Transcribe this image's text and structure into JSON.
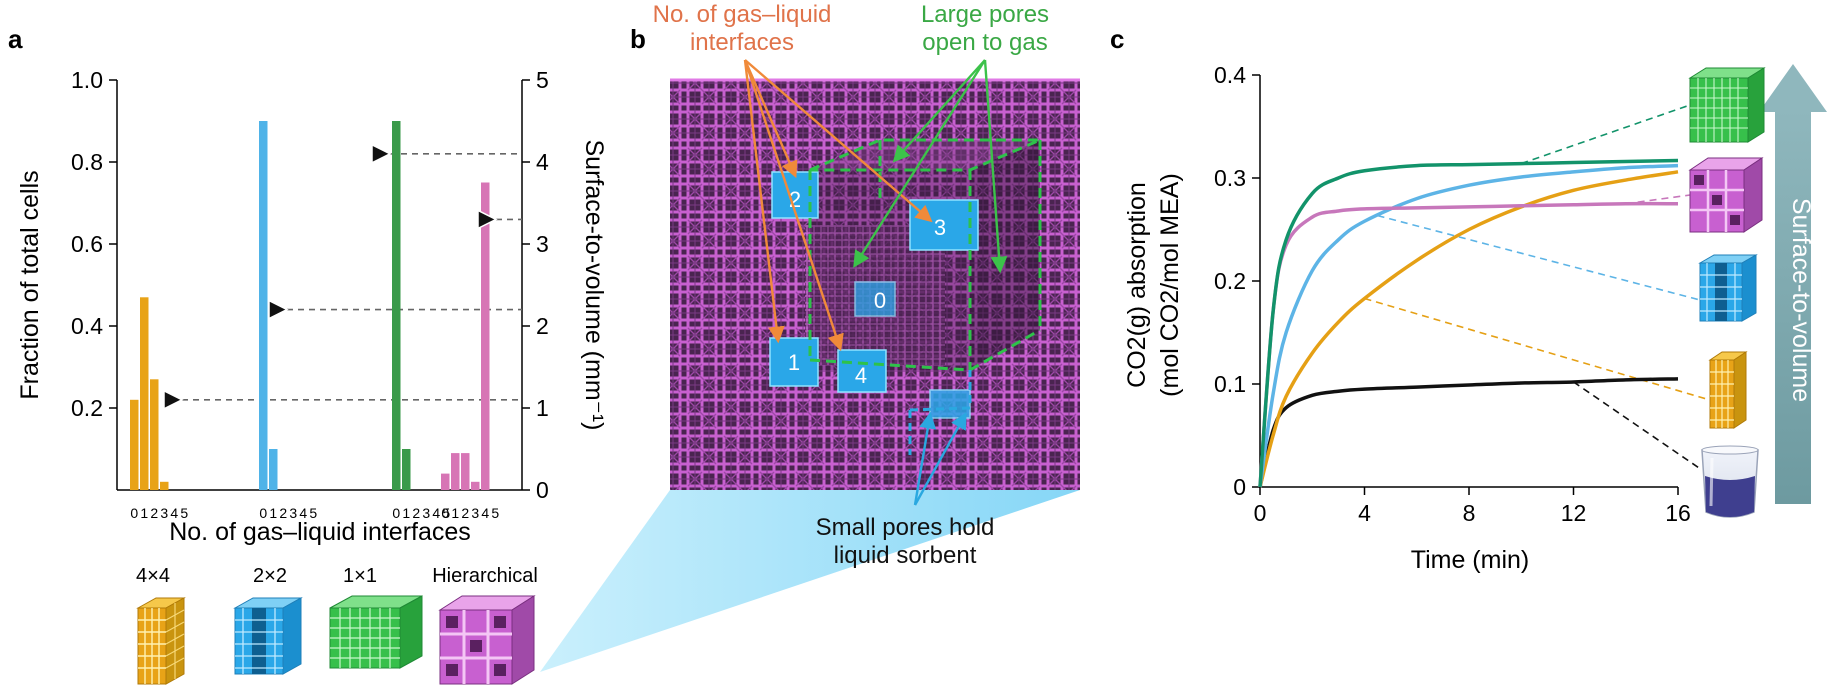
{
  "panels": {
    "a": "a",
    "b": "b",
    "c": "c"
  },
  "chart_data": [
    {
      "panel": "a",
      "type": "bar",
      "x_tick_labels": [
        "0",
        "1",
        "2",
        "3",
        "4",
        "5"
      ],
      "xlabel": "No. of gas–liquid interfaces",
      "ylabel": "Fraction of total cells",
      "ylabel_right": "Surface-to-volume (mm⁻¹)",
      "ylim": [
        0,
        1.0
      ],
      "yticks": [
        "0.2",
        "0.4",
        "0.6",
        "0.8",
        "1.0"
      ],
      "ylim_right": [
        0,
        5
      ],
      "yticks_right": [
        "0",
        "1",
        "2",
        "3",
        "4",
        "5"
      ],
      "groups": [
        {
          "name": "4×4",
          "color": "#e8a317",
          "values": [
            0.22,
            0.47,
            0.27,
            0.02,
            0,
            0
          ],
          "surface_to_volume": 1.1
        },
        {
          "name": "2×2",
          "color": "#4fb3e8",
          "values": [
            0.9,
            0.1,
            0,
            0,
            0,
            0
          ],
          "surface_to_volume": 2.2
        },
        {
          "name": "1×1",
          "color": "#3a9a4a",
          "values": [
            0.9,
            0.1,
            0,
            0,
            0,
            0
          ],
          "surface_to_volume": 4.1
        },
        {
          "name": "Hierarchical",
          "color": "#d775b5",
          "values": [
            0.04,
            0.09,
            0.09,
            0.02,
            0.75,
            0
          ],
          "surface_to_volume": 3.3
        }
      ]
    },
    {
      "panel": "c",
      "type": "line",
      "xlabel": "Time (min)",
      "ylabel_line1": "CO2(g) absorption",
      "ylabel_line2": "(mol CO2/mol MEA)",
      "xlim": [
        0,
        16
      ],
      "ylim": [
        0,
        0.4
      ],
      "xticks": [
        "0",
        "4",
        "8",
        "12",
        "16"
      ],
      "yticks": [
        "0",
        "0.1",
        "0.2",
        "0.3",
        "0.4"
      ],
      "right_axis_label": "Surface-to-volume",
      "series": [
        {
          "color": "#12936a",
          "icon": "1x1-lattice-icon",
          "points": [
            [
              0,
              0
            ],
            [
              0.5,
              0.17
            ],
            [
              1,
              0.24
            ],
            [
              2,
              0.285
            ],
            [
              3,
              0.3
            ],
            [
              4,
              0.307
            ],
            [
              6,
              0.312
            ],
            [
              8,
              0.313
            ],
            [
              10,
              0.314
            ],
            [
              12,
              0.315
            ],
            [
              14,
              0.316
            ],
            [
              16,
              0.317
            ]
          ]
        },
        {
          "color": "#c777bb",
          "icon": "hierarchical-lattice-icon",
          "points": [
            [
              0,
              0
            ],
            [
              0.5,
              0.17
            ],
            [
              1,
              0.235
            ],
            [
              2,
              0.262
            ],
            [
              3,
              0.268
            ],
            [
              4,
              0.27
            ],
            [
              6,
              0.271
            ],
            [
              8,
              0.272
            ],
            [
              10,
              0.273
            ],
            [
              12,
              0.274
            ],
            [
              14,
              0.275
            ],
            [
              16,
              0.275
            ]
          ]
        },
        {
          "color": "#5db4e6",
          "icon": "2x2-lattice-icon",
          "points": [
            [
              0,
              0
            ],
            [
              0.5,
              0.09
            ],
            [
              1,
              0.15
            ],
            [
              2,
              0.21
            ],
            [
              3,
              0.24
            ],
            [
              4,
              0.258
            ],
            [
              6,
              0.28
            ],
            [
              8,
              0.293
            ],
            [
              10,
              0.301
            ],
            [
              12,
              0.306
            ],
            [
              14,
              0.31
            ],
            [
              16,
              0.312
            ]
          ]
        },
        {
          "color": "#e5a015",
          "icon": "4x4-lattice-icon",
          "points": [
            [
              0,
              0
            ],
            [
              0.5,
              0.05
            ],
            [
              1,
              0.088
            ],
            [
              2,
              0.13
            ],
            [
              3,
              0.16
            ],
            [
              4,
              0.183
            ],
            [
              6,
              0.22
            ],
            [
              8,
              0.25
            ],
            [
              10,
              0.272
            ],
            [
              12,
              0.288
            ],
            [
              14,
              0.298
            ],
            [
              16,
              0.306
            ]
          ]
        },
        {
          "color": "#111111",
          "icon": "beaker-icon",
          "points": [
            [
              0,
              0
            ],
            [
              0.5,
              0.055
            ],
            [
              1,
              0.077
            ],
            [
              2,
              0.089
            ],
            [
              3,
              0.093
            ],
            [
              4,
              0.095
            ],
            [
              6,
              0.097
            ],
            [
              8,
              0.099
            ],
            [
              10,
              0.101
            ],
            [
              12,
              0.102
            ],
            [
              14,
              0.104
            ],
            [
              16,
              0.105
            ]
          ]
        }
      ]
    }
  ],
  "lattice_labels": [
    "4×4",
    "2×2",
    "1×1",
    "Hierarchical"
  ],
  "render": {
    "title_gas_liquid_line1": "No. of gas–liquid",
    "title_gas_liquid_line2": "interfaces",
    "title_large_pores_line1": "Large pores",
    "title_large_pores_line2": "open to gas",
    "title_small_pores_line1": "Small pores hold",
    "title_small_pores_line2": "liquid sorbent",
    "cell_numbers": [
      "0",
      "1",
      "2",
      "3",
      "4"
    ]
  },
  "colors": {
    "orange_text": "#e0734a",
    "green_text": "#3aa845",
    "blue_text": "#2aa8e0",
    "lattice_purple": "#c860d0",
    "lattice_dark": "#3a1d3f",
    "cube_green": "#2ec24a",
    "cube_blue": "#2aa7e8"
  }
}
